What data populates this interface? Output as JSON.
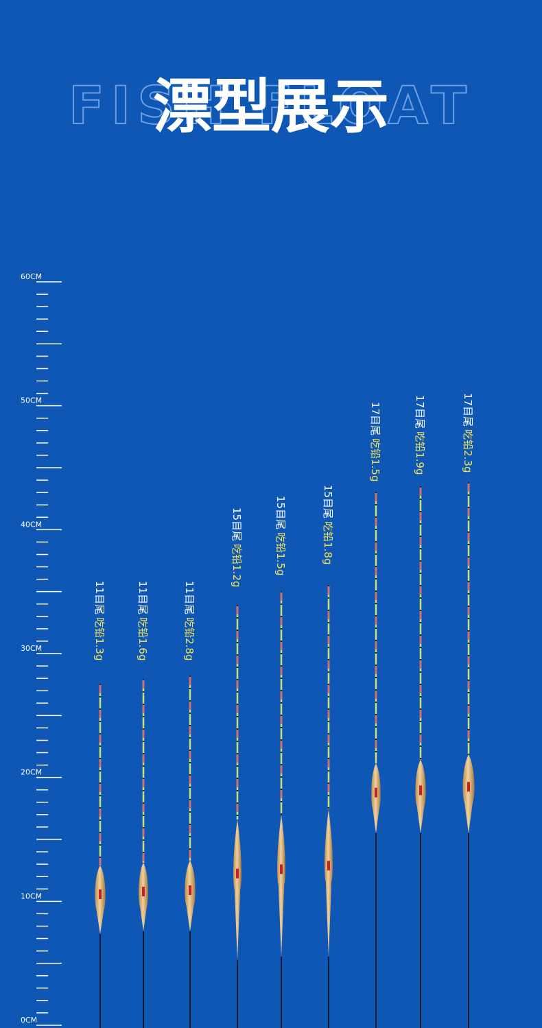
{
  "header": {
    "title": "漂型展示",
    "background_text": "FISH FLOAT"
  },
  "ruler": {
    "labels": [
      "60CM",
      "50CM",
      "40CM",
      "30CM",
      "20CM",
      "10CM",
      "0CM"
    ]
  },
  "floats": [
    {
      "tail": "11目尾",
      "lead": "吃铅1.3g"
    },
    {
      "tail": "11目尾",
      "lead": "吃铅1.6g"
    },
    {
      "tail": "11目尾",
      "lead": "吃铅2.8g"
    },
    {
      "tail": "15目尾",
      "lead": "吃铅1.2g"
    },
    {
      "tail": "15目尾",
      "lead": "吃铅1.5g"
    },
    {
      "tail": "15目尾",
      "lead": "吃铅1.8g"
    },
    {
      "tail": "17目尾",
      "lead": "吃铅1.5g"
    },
    {
      "tail": "17目尾",
      "lead": "吃铅1.9g"
    },
    {
      "tail": "17目尾",
      "lead": "吃铅2.3g"
    }
  ]
}
